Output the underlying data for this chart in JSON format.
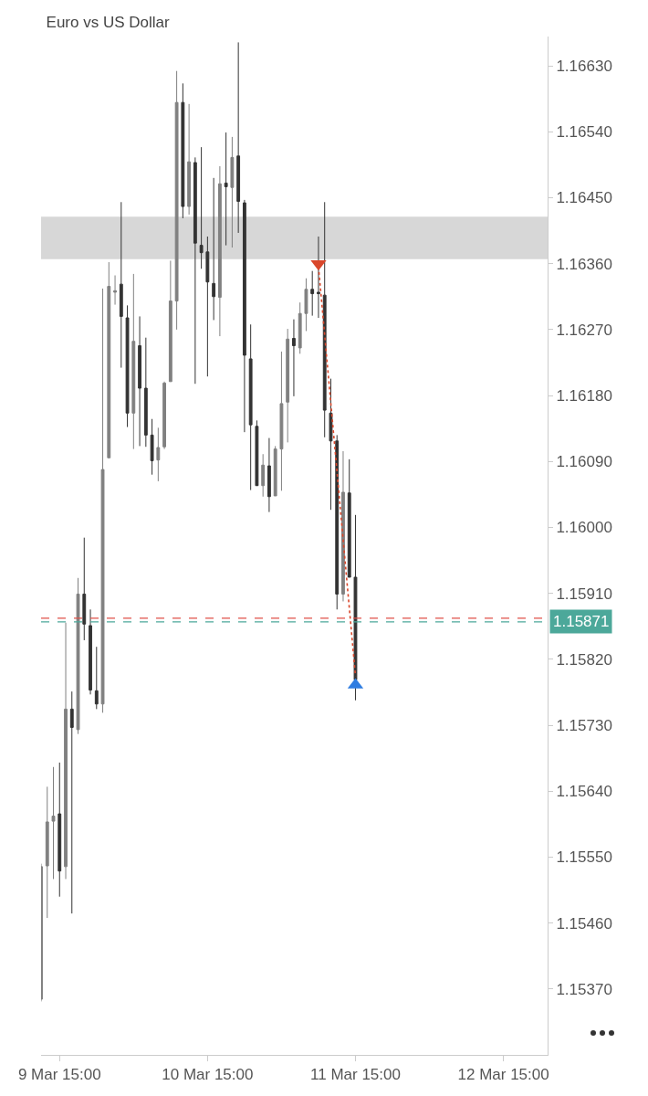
{
  "chart_data": {
    "type": "candlestick",
    "title": "Euro vs US Dollar",
    "x": [
      "--03-09T12:00",
      "--03-09T13:00",
      "--03-09T14:00",
      "--03-09T15:00",
      "--03-09T16:00",
      "--03-09T17:00",
      "--03-09T18:00",
      "--03-09T19:00",
      "--03-09T20:00",
      "--03-09T21:00",
      "--03-09T22:00",
      "--03-09T23:00",
      "--03-10T00:00",
      "--03-10T01:00",
      "--03-10T02:00",
      "--03-10T03:00",
      "--03-10T04:00",
      "--03-10T05:00",
      "--03-10T06:00",
      "--03-10T07:00",
      "--03-10T08:00",
      "--03-10T09:00",
      "--03-10T10:00",
      "--03-10T11:00",
      "--03-10T12:00",
      "--03-10T13:00",
      "--03-10T14:00",
      "--03-10T15:00",
      "--03-10T16:00",
      "--03-10T17:00",
      "--03-10T18:00",
      "--03-10T19:00",
      "--03-10T20:00",
      "--03-10T21:00",
      "--03-10T22:00",
      "--03-10T23:00",
      "--03-11T00:00",
      "--03-11T01:00",
      "--03-11T02:00",
      "--03-11T03:00",
      "--03-11T04:00",
      "--03-11T05:00",
      "--03-11T06:00",
      "--03-11T07:00",
      "--03-11T08:00",
      "--03-11T09:00",
      "--03-11T10:00",
      "--03-11T11:00",
      "--03-11T12:00",
      "--03-11T13:00",
      "--03-11T14:00",
      "--03-11T15:00"
    ],
    "ohlc": [
      [
        1.15356,
        1.15541,
        1.15353,
        1.15537
      ],
      [
        1.15538,
        1.15646,
        1.15467,
        1.15598
      ],
      [
        1.15599,
        1.15673,
        1.1552,
        1.15606
      ],
      [
        1.15609,
        1.15679,
        1.15496,
        1.15531
      ],
      [
        1.15537,
        1.1587,
        1.1552,
        1.15752
      ],
      [
        1.15752,
        1.15776,
        1.15473,
        1.15727
      ],
      [
        1.15724,
        1.15931,
        1.15718,
        1.15909
      ],
      [
        1.15909,
        1.15986,
        1.15846,
        1.15868
      ],
      [
        1.15866,
        1.15888,
        1.15772,
        1.15778
      ],
      [
        1.15777,
        1.15837,
        1.15752,
        1.15759
      ],
      [
        1.15759,
        1.16326,
        1.15747,
        1.16079
      ],
      [
        1.16095,
        1.16362,
        1.16095,
        1.16329
      ],
      [
        1.16321,
        1.16344,
        1.16304,
        1.16323
      ],
      [
        1.16332,
        1.16444,
        1.16218,
        1.16288
      ],
      [
        1.16286,
        1.16303,
        1.16137,
        1.16156
      ],
      [
        1.16156,
        1.16346,
        1.16107,
        1.16254
      ],
      [
        1.16248,
        1.16288,
        1.16111,
        1.1619
      ],
      [
        1.1619,
        1.16259,
        1.1611,
        1.16126
      ],
      [
        1.16126,
        1.16148,
        1.16072,
        1.16091
      ],
      [
        1.16092,
        1.16136,
        1.16063,
        1.16109
      ],
      [
        1.1611,
        1.16199,
        1.16107,
        1.16197
      ],
      [
        1.16199,
        1.16364,
        1.16199,
        1.16309
      ],
      [
        1.16309,
        1.16623,
        1.1627,
        1.1658
      ],
      [
        1.1658,
        1.16606,
        1.16422,
        1.16438
      ],
      [
        1.16438,
        1.16578,
        1.16427,
        1.16499
      ],
      [
        1.16498,
        1.16505,
        1.16196,
        1.16388
      ],
      [
        1.16385,
        1.16519,
        1.16353,
        1.16375
      ],
      [
        1.16376,
        1.16397,
        1.16206,
        1.16335
      ],
      [
        1.16333,
        1.16477,
        1.16283,
        1.16315
      ],
      [
        1.16314,
        1.16493,
        1.16261,
        1.16469
      ],
      [
        1.1647,
        1.16539,
        1.16385,
        1.16465
      ],
      [
        1.16464,
        1.16533,
        1.16382,
        1.16505
      ],
      [
        1.16507,
        1.16662,
        1.16402,
        1.16445
      ],
      [
        1.16443,
        1.16447,
        1.1613,
        1.16235
      ],
      [
        1.1623,
        1.16277,
        1.16051,
        1.1614
      ],
      [
        1.16138,
        1.16146,
        1.16057,
        1.16057
      ],
      [
        1.16057,
        1.161,
        1.16042,
        1.16085
      ],
      [
        1.16084,
        1.16122,
        1.16021,
        1.16042
      ],
      [
        1.16043,
        1.16111,
        1.16043,
        1.16107
      ],
      [
        1.16107,
        1.1624,
        1.1605,
        1.16169
      ],
      [
        1.16171,
        1.16271,
        1.16116,
        1.16257
      ],
      [
        1.16258,
        1.16284,
        1.16179,
        1.16248
      ],
      [
        1.16245,
        1.16307,
        1.16237,
        1.16292
      ],
      [
        1.16292,
        1.1634,
        1.16268,
        1.16325
      ],
      [
        1.16325,
        1.1635,
        1.16289,
        1.16319
      ],
      [
        1.16321,
        1.16397,
        1.16286,
        1.16319
      ],
      [
        1.16317,
        1.16444,
        1.16123,
        1.1616
      ],
      [
        1.16156,
        1.16203,
        1.16024,
        1.16118
      ],
      [
        1.16118,
        1.16126,
        1.15888,
        1.15909
      ],
      [
        1.15909,
        1.16104,
        1.15899,
        1.16048
      ],
      [
        1.16047,
        1.16093,
        1.15932,
        1.15932
      ],
      [
        1.15932,
        1.16017,
        1.15764,
        1.15792
      ]
    ],
    "colors": [
      "#808080",
      "#808080",
      "#808080",
      "#333333",
      "#808080",
      "#333333",
      "#808080",
      "#333333",
      "#333333",
      "#333333",
      "#808080",
      "#808080",
      "#808080",
      "#333333",
      "#333333",
      "#808080",
      "#333333",
      "#333333",
      "#333333",
      "#808080",
      "#808080",
      "#808080",
      "#808080",
      "#333333",
      "#808080",
      "#333333",
      "#333333",
      "#333333",
      "#333333",
      "#808080",
      "#333333",
      "#808080",
      "#333333",
      "#333333",
      "#333333",
      "#333333",
      "#808080",
      "#333333",
      "#808080",
      "#808080",
      "#808080",
      "#333333",
      "#808080",
      "#808080",
      "#333333",
      "#333333",
      "#333333",
      "#333333",
      "#333333",
      "#808080",
      "#333333",
      "#333333"
    ],
    "series": [
      {
        "type": "line",
        "x": [
          "--03-11T09:00",
          "--03-11T15:00"
        ],
        "values": [
          1.16356,
          1.15797
        ],
        "color": "#d9472b",
        "line_style": "dotted"
      },
      {
        "type": "scatter",
        "x": [
          "--03-11T09:00"
        ],
        "values": [
          1.1636
        ],
        "color": "#d9472b",
        "marker": "triangle"
      },
      {
        "type": "scatter",
        "x": [
          "--03-11T15:00"
        ],
        "values": [
          1.15785
        ],
        "color": "#2f7de1",
        "marker": "triangle"
      }
    ],
    "bands": [
      {
        "axis": "y",
        "from": 1.16366,
        "to": 1.16424,
        "color": "#d3d3d3"
      }
    ],
    "ref_lines": [
      {
        "axis": "y",
        "value": 1.15876,
        "color": "#e0524a",
        "line_style": "dashed"
      },
      {
        "axis": "y",
        "value": 1.15871,
        "label": "1.15871",
        "color": "#4ca89a",
        "line_style": "dashed"
      }
    ],
    "xlim": [
      "--03-09T12:00",
      "--03-12T22:10"
    ],
    "xticks": [
      {
        "value": "--03-09T15:00",
        "label": "9 Mar 15:00"
      },
      {
        "value": "--03-10T15:00",
        "label": "10 Mar 15:00"
      },
      {
        "value": "--03-11T15:00",
        "label": "11 Mar 15:00"
      },
      {
        "value": "--03-12T15:00",
        "label": "12 Mar 15:00"
      }
    ],
    "ylim": [
      1.1528,
      1.1667
    ],
    "yticks": [
      {
        "value": 1.1537,
        "label": "1.15370"
      },
      {
        "value": 1.1546,
        "label": "1.15460"
      },
      {
        "value": 1.1555,
        "label": "1.15550"
      },
      {
        "value": 1.1564,
        "label": "1.15640"
      },
      {
        "value": 1.1573,
        "label": "1.15730"
      },
      {
        "value": 1.1582,
        "label": "1.15820"
      },
      {
        "value": 1.1591,
        "label": "1.15910"
      },
      {
        "value": 1.16,
        "label": "1.16000"
      },
      {
        "value": 1.1609,
        "label": "1.16090"
      },
      {
        "value": 1.1618,
        "label": "1.16180"
      },
      {
        "value": 1.1627,
        "label": "1.16270"
      },
      {
        "value": 1.1636,
        "label": "1.16360"
      },
      {
        "value": 1.1645,
        "label": "1.16450"
      },
      {
        "value": 1.1654,
        "label": "1.16540"
      },
      {
        "value": 1.1663,
        "label": "1.16630"
      }
    ]
  }
}
